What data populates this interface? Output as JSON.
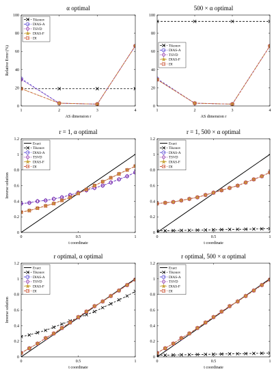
{
  "colors": {
    "exact": "#000000",
    "tikonov": "#000000",
    "dias_a": "#4b3bd1",
    "tsvd": "#8b2ca6",
    "dias_f": "#c8a43c",
    "di": "#cc5a3c"
  },
  "chart_data": [
    {
      "type": "line",
      "title": "α optimal",
      "xlabel": "AS dimension r",
      "ylabel": "Relative Error (%)",
      "xlim": [
        1,
        4
      ],
      "ylim": [
        0,
        100
      ],
      "xticks": [
        1,
        2,
        3,
        4
      ],
      "yticks": [
        0,
        20,
        40,
        60,
        80,
        100
      ],
      "xtick_labels": [
        "1",
        "2",
        "3",
        "4"
      ],
      "ytick_labels": [
        "0",
        "20",
        "40",
        "60",
        "80",
        "100"
      ],
      "legend": "top-left",
      "x": [
        1,
        2,
        3,
        4
      ],
      "series": [
        {
          "name": "Tikonov",
          "key": "tikonov",
          "values": [
            19,
            19,
            19,
            19
          ]
        },
        {
          "name": "DIAS-A",
          "key": "dias_a",
          "values": [
            30,
            3,
            2,
            66
          ]
        },
        {
          "name": "TSVD",
          "key": "tsvd",
          "values": [
            29,
            3,
            2,
            66
          ]
        },
        {
          "name": "DIAS-F",
          "key": "dias_f",
          "values": [
            19,
            3,
            2,
            66
          ]
        },
        {
          "name": "DI",
          "key": "di",
          "values": [
            19,
            3,
            2,
            66
          ]
        }
      ]
    },
    {
      "type": "line",
      "title": "500 × α optimal",
      "xlabel": "AS dimension r",
      "ylabel": "",
      "xlim": [
        1,
        4
      ],
      "ylim": [
        0,
        100
      ],
      "xticks": [
        1,
        2,
        3,
        4
      ],
      "yticks": [
        0,
        20,
        40,
        60,
        80,
        100
      ],
      "xtick_labels": [
        "1",
        "2",
        "3",
        "4"
      ],
      "ytick_labels": [
        "0",
        "20",
        "40",
        "60",
        "80",
        "100"
      ],
      "legend": "center-left",
      "x": [
        1,
        2,
        3,
        4
      ],
      "series": [
        {
          "name": "Tikonov",
          "key": "tikonov",
          "values": [
            93,
            93,
            93,
            93
          ]
        },
        {
          "name": "DIAS-A",
          "key": "dias_a",
          "values": [
            30,
            3,
            2,
            66
          ]
        },
        {
          "name": "TSVD",
          "key": "tsvd",
          "values": [
            29,
            3,
            2,
            66
          ]
        },
        {
          "name": "DIAS-F",
          "key": "dias_f",
          "values": [
            29,
            3,
            2,
            66
          ]
        },
        {
          "name": "DI",
          "key": "di",
          "values": [
            29,
            3,
            2,
            66
          ]
        }
      ]
    },
    {
      "type": "line",
      "title": "r = 1, α optimal",
      "xlabel": "t coordinate",
      "ylabel": "Inverse solution",
      "xlim": [
        0,
        1
      ],
      "ylim": [
        0,
        1.2
      ],
      "xticks": [
        0,
        0.5,
        1
      ],
      "yticks": [
        0,
        0.2,
        0.4,
        0.6,
        0.8,
        1,
        1.2
      ],
      "xtick_labels": [
        "0",
        "0.5",
        "1"
      ],
      "ytick_labels": [
        "0",
        "0.2",
        "0.4",
        "0.6",
        "0.8",
        "1",
        "1.2"
      ],
      "legend": "top-left",
      "x": [
        0,
        0.0714,
        0.1429,
        0.2143,
        0.2857,
        0.3571,
        0.4286,
        0.5,
        0.5714,
        0.6429,
        0.7143,
        0.7857,
        0.8571,
        0.9286,
        1
      ],
      "series": [
        {
          "name": "Exact",
          "key": "exact",
          "x": [
            0,
            1
          ],
          "values": [
            0,
            1
          ]
        },
        {
          "name": "Tikonov",
          "key": "tikonov",
          "values": [
            0.26,
            0.28,
            0.31,
            0.34,
            0.37,
            0.41,
            0.45,
            0.5,
            0.55,
            0.6,
            0.65,
            0.7,
            0.75,
            0.8,
            0.85
          ]
        },
        {
          "name": "DIAS-A",
          "key": "dias_a",
          "values": [
            0.37,
            0.38,
            0.4,
            0.41,
            0.43,
            0.45,
            0.48,
            0.51,
            0.54,
            0.57,
            0.6,
            0.64,
            0.68,
            0.72,
            0.77
          ]
        },
        {
          "name": "TSVD",
          "key": "tsvd",
          "values": [
            0.37,
            0.38,
            0.4,
            0.41,
            0.43,
            0.45,
            0.48,
            0.51,
            0.54,
            0.57,
            0.6,
            0.64,
            0.68,
            0.72,
            0.77
          ]
        },
        {
          "name": "DIAS-F",
          "key": "dias_f",
          "values": [
            0.26,
            0.28,
            0.31,
            0.34,
            0.37,
            0.41,
            0.45,
            0.5,
            0.55,
            0.6,
            0.65,
            0.7,
            0.75,
            0.8,
            0.85
          ]
        },
        {
          "name": "DI",
          "key": "di",
          "values": [
            0.26,
            0.28,
            0.31,
            0.34,
            0.37,
            0.41,
            0.45,
            0.5,
            0.55,
            0.6,
            0.65,
            0.7,
            0.75,
            0.8,
            0.85
          ]
        }
      ]
    },
    {
      "type": "line",
      "title": "r = 1, 500 × α optimal",
      "xlabel": "t coordinate",
      "ylabel": "",
      "xlim": [
        0,
        1
      ],
      "ylim": [
        0,
        1.2
      ],
      "xticks": [
        0,
        0.5,
        1
      ],
      "yticks": [
        0,
        0.2,
        0.4,
        0.6,
        0.8,
        1,
        1.2
      ],
      "xtick_labels": [
        "0",
        "0.5",
        "1"
      ],
      "ytick_labels": [
        "0",
        "0.2",
        "0.4",
        "0.6",
        "0.8",
        "1",
        "1.2"
      ],
      "legend": "top-left",
      "x": [
        0,
        0.0714,
        0.1429,
        0.2143,
        0.2857,
        0.3571,
        0.4286,
        0.5,
        0.5714,
        0.6429,
        0.7143,
        0.7857,
        0.8571,
        0.9286,
        1
      ],
      "series": [
        {
          "name": "Exact",
          "key": "exact",
          "x": [
            0,
            1
          ],
          "values": [
            0,
            1
          ]
        },
        {
          "name": "Tikonov",
          "key": "tikonov",
          "values": [
            0.02,
            0.022,
            0.024,
            0.026,
            0.028,
            0.03,
            0.032,
            0.034,
            0.036,
            0.038,
            0.04,
            0.042,
            0.044,
            0.046,
            0.048
          ]
        },
        {
          "name": "DIAS-A",
          "key": "dias_a",
          "values": [
            0.37,
            0.38,
            0.39,
            0.41,
            0.43,
            0.45,
            0.48,
            0.51,
            0.54,
            0.57,
            0.6,
            0.64,
            0.68,
            0.72,
            0.77
          ]
        },
        {
          "name": "TSVD",
          "key": "tsvd",
          "values": [
            0.37,
            0.38,
            0.39,
            0.41,
            0.43,
            0.45,
            0.48,
            0.51,
            0.54,
            0.57,
            0.6,
            0.64,
            0.68,
            0.72,
            0.77
          ]
        },
        {
          "name": "DIAS-F",
          "key": "dias_f",
          "values": [
            0.37,
            0.38,
            0.39,
            0.41,
            0.43,
            0.45,
            0.48,
            0.51,
            0.54,
            0.57,
            0.6,
            0.64,
            0.68,
            0.72,
            0.77
          ]
        },
        {
          "name": "DI",
          "key": "di",
          "values": [
            0.37,
            0.38,
            0.39,
            0.41,
            0.43,
            0.45,
            0.48,
            0.51,
            0.54,
            0.57,
            0.6,
            0.64,
            0.68,
            0.72,
            0.77
          ]
        }
      ]
    },
    {
      "type": "line",
      "title": "r optimal, α optimal",
      "xlabel": "t coordinate",
      "ylabel": "Inverse solution",
      "xlim": [
        0,
        1
      ],
      "ylim": [
        0,
        1.2
      ],
      "xticks": [
        0,
        0.5,
        1
      ],
      "yticks": [
        0,
        0.2,
        0.4,
        0.6,
        0.8,
        1,
        1.2
      ],
      "xtick_labels": [
        "0",
        "0.5",
        "1"
      ],
      "ytick_labels": [
        "0",
        "0.2",
        "0.4",
        "0.6",
        "0.8",
        "1",
        "1.2"
      ],
      "legend": "top-left",
      "x": [
        0,
        0.0714,
        0.1429,
        0.2143,
        0.2857,
        0.3571,
        0.4286,
        0.5,
        0.5714,
        0.6429,
        0.7143,
        0.7857,
        0.8571,
        0.9286,
        1
      ],
      "series": [
        {
          "name": "Exact",
          "key": "exact",
          "x": [
            0,
            1
          ],
          "values": [
            0,
            1
          ]
        },
        {
          "name": "Tikonov",
          "key": "tikonov",
          "values": [
            0.26,
            0.28,
            0.31,
            0.34,
            0.38,
            0.42,
            0.46,
            0.5,
            0.54,
            0.58,
            0.63,
            0.68,
            0.73,
            0.78,
            0.84
          ]
        },
        {
          "name": "DIAS-A",
          "key": "dias_a",
          "values": [
            0.05,
            0.11,
            0.17,
            0.24,
            0.3,
            0.37,
            0.44,
            0.51,
            0.58,
            0.65,
            0.71,
            0.78,
            0.85,
            0.92,
            0.99
          ]
        },
        {
          "name": "TSVD",
          "key": "tsvd",
          "values": [
            0.05,
            0.11,
            0.17,
            0.24,
            0.3,
            0.37,
            0.44,
            0.51,
            0.58,
            0.65,
            0.71,
            0.78,
            0.85,
            0.92,
            0.99
          ]
        },
        {
          "name": "DIAS-F",
          "key": "dias_f",
          "values": [
            0.05,
            0.11,
            0.17,
            0.24,
            0.3,
            0.37,
            0.44,
            0.51,
            0.58,
            0.65,
            0.71,
            0.78,
            0.85,
            0.92,
            0.99
          ]
        },
        {
          "name": "DI",
          "key": "di",
          "values": [
            0.05,
            0.11,
            0.17,
            0.24,
            0.3,
            0.37,
            0.44,
            0.51,
            0.58,
            0.65,
            0.71,
            0.78,
            0.85,
            0.92,
            0.99
          ]
        }
      ]
    },
    {
      "type": "line",
      "title": "r optimal, 500 × α optimal",
      "xlabel": "t coordinate",
      "ylabel": "",
      "xlim": [
        0,
        1
      ],
      "ylim": [
        0,
        1.2
      ],
      "xticks": [
        0,
        0.5,
        1
      ],
      "yticks": [
        0,
        0.2,
        0.4,
        0.6,
        0.8,
        1,
        1.2
      ],
      "xtick_labels": [
        "0",
        "0.5",
        "1"
      ],
      "ytick_labels": [
        "0",
        "0.2",
        "0.4",
        "0.6",
        "0.8",
        "1",
        "1.2"
      ],
      "legend": "top-left",
      "x": [
        0,
        0.0714,
        0.1429,
        0.2143,
        0.2857,
        0.3571,
        0.4286,
        0.5,
        0.5714,
        0.6429,
        0.7143,
        0.7857,
        0.8571,
        0.9286,
        1
      ],
      "series": [
        {
          "name": "Exact",
          "key": "exact",
          "x": [
            0,
            1
          ],
          "values": [
            0,
            1
          ]
        },
        {
          "name": "Tikonov",
          "key": "tikonov",
          "values": [
            0.02,
            0.022,
            0.024,
            0.026,
            0.028,
            0.03,
            0.032,
            0.034,
            0.036,
            0.038,
            0.04,
            0.042,
            0.044,
            0.046,
            0.048
          ]
        },
        {
          "name": "DIAS-A",
          "key": "dias_a",
          "values": [
            0.05,
            0.11,
            0.17,
            0.24,
            0.3,
            0.37,
            0.44,
            0.51,
            0.58,
            0.65,
            0.71,
            0.78,
            0.85,
            0.92,
            0.99
          ]
        },
        {
          "name": "TSVD",
          "key": "tsvd",
          "values": [
            0.05,
            0.11,
            0.17,
            0.24,
            0.3,
            0.37,
            0.44,
            0.51,
            0.58,
            0.65,
            0.71,
            0.78,
            0.85,
            0.92,
            0.99
          ]
        },
        {
          "name": "DIAS-F",
          "key": "dias_f",
          "values": [
            0.05,
            0.11,
            0.17,
            0.24,
            0.3,
            0.37,
            0.44,
            0.51,
            0.58,
            0.65,
            0.71,
            0.78,
            0.85,
            0.92,
            0.99
          ]
        },
        {
          "name": "DI",
          "key": "di",
          "values": [
            0.05,
            0.11,
            0.17,
            0.24,
            0.3,
            0.37,
            0.44,
            0.51,
            0.58,
            0.65,
            0.71,
            0.78,
            0.85,
            0.92,
            0.99
          ]
        }
      ]
    }
  ]
}
